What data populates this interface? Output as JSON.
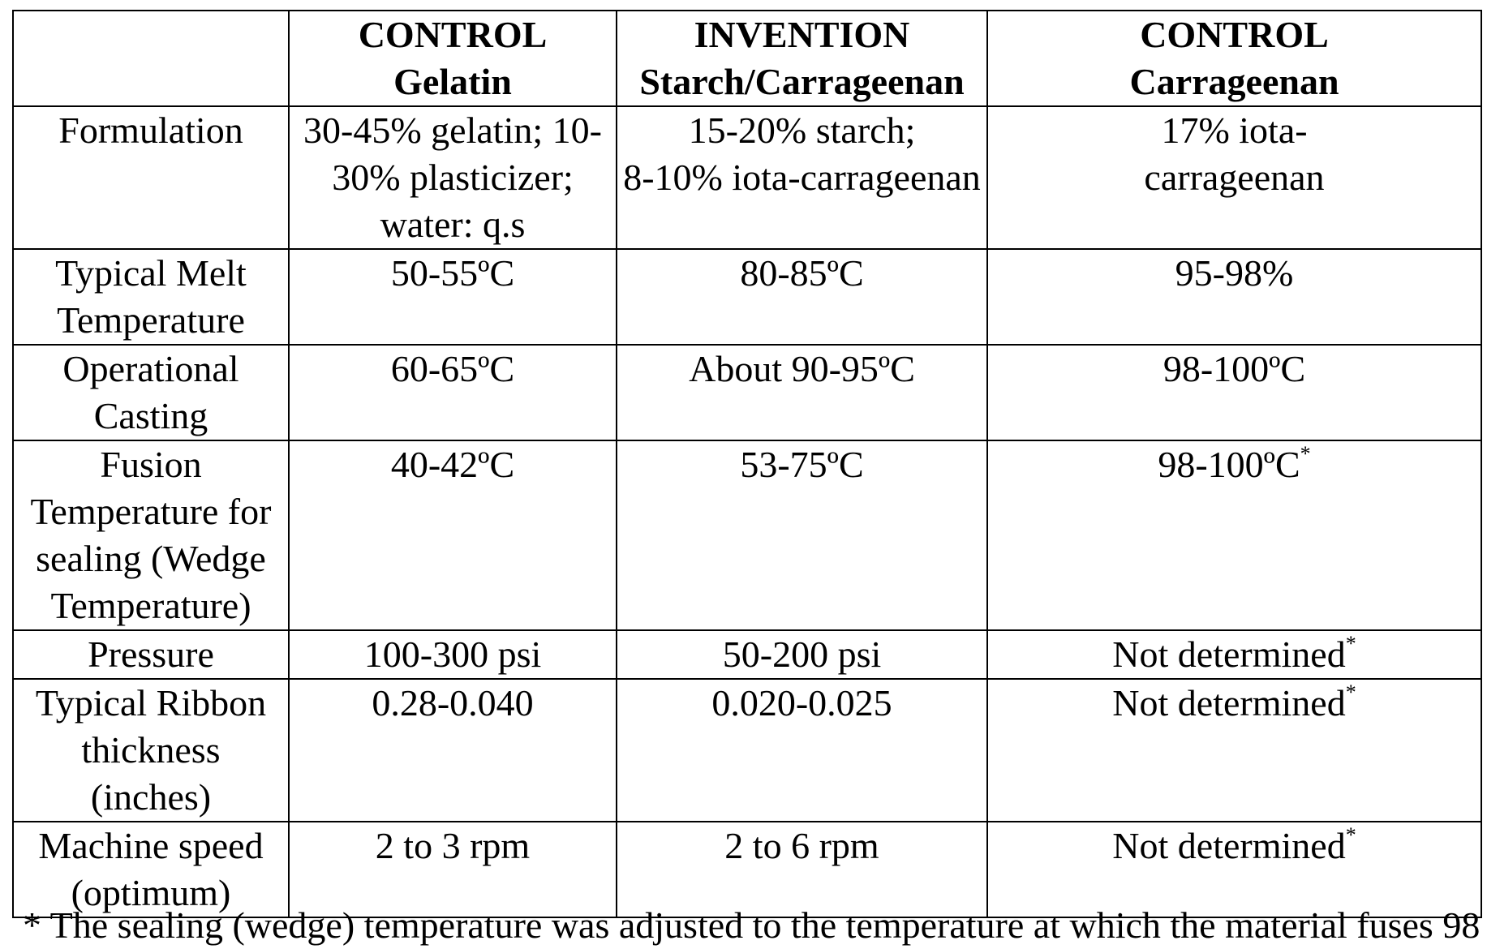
{
  "table": {
    "headers": [
      {
        "line1": "",
        "line2": ""
      },
      {
        "line1": "CONTROL",
        "line2": "Gelatin"
      },
      {
        "line1": "INVENTION",
        "line2": "Starch/Carrageenan"
      },
      {
        "line1": "CONTROL",
        "line2": "Carrageenan"
      }
    ],
    "rows": [
      {
        "label": [
          "Formulation"
        ],
        "c1": [
          "30-45% gelatin; 10-",
          "30% plasticizer;",
          "water: q.s"
        ],
        "c2": [
          "15-20% starch;",
          "8-10% iota-carrageenan"
        ],
        "c3": [
          "17% iota-",
          "carrageenan"
        ],
        "c3_mark": ""
      },
      {
        "label": [
          "Typical Melt",
          "Temperature"
        ],
        "c1": [
          "50-55ºC"
        ],
        "c2": [
          "80-85ºC"
        ],
        "c3": [
          "95-98%"
        ],
        "c3_mark": ""
      },
      {
        "label": [
          "Operational",
          "Casting"
        ],
        "c1": [
          "60-65ºC"
        ],
        "c2": [
          "About 90-95ºC"
        ],
        "c3": [
          "98-100ºC"
        ],
        "c3_mark": ""
      },
      {
        "label": [
          "Fusion",
          "Temperature for",
          "sealing (Wedge",
          "Temperature)"
        ],
        "c1": [
          "40-42ºC"
        ],
        "c2": [
          "53-75ºC"
        ],
        "c3": [
          "98-100ºC"
        ],
        "c3_mark": "*"
      },
      {
        "label": [
          "Pressure"
        ],
        "c1": [
          "100-300 psi"
        ],
        "c2": [
          "50-200 psi"
        ],
        "c3": [
          "Not determined"
        ],
        "c3_mark": "*"
      },
      {
        "label": [
          "Typical Ribbon",
          "thickness",
          "(inches)"
        ],
        "c1": [
          "0.28-0.040"
        ],
        "c2": [
          "0.020-0.025"
        ],
        "c3": [
          "Not determined"
        ],
        "c3_mark": "*"
      },
      {
        "label": [
          "Machine speed",
          "(optimum)"
        ],
        "c1": [
          "2 to 3 rpm"
        ],
        "c2": [
          "2 to 6 rpm"
        ],
        "c3": [
          "Not determined"
        ],
        "c3_mark": "*"
      }
    ]
  },
  "footnote": "* The sealing (wedge) temperature was adjusted to the temperature at which the material fuses 98"
}
